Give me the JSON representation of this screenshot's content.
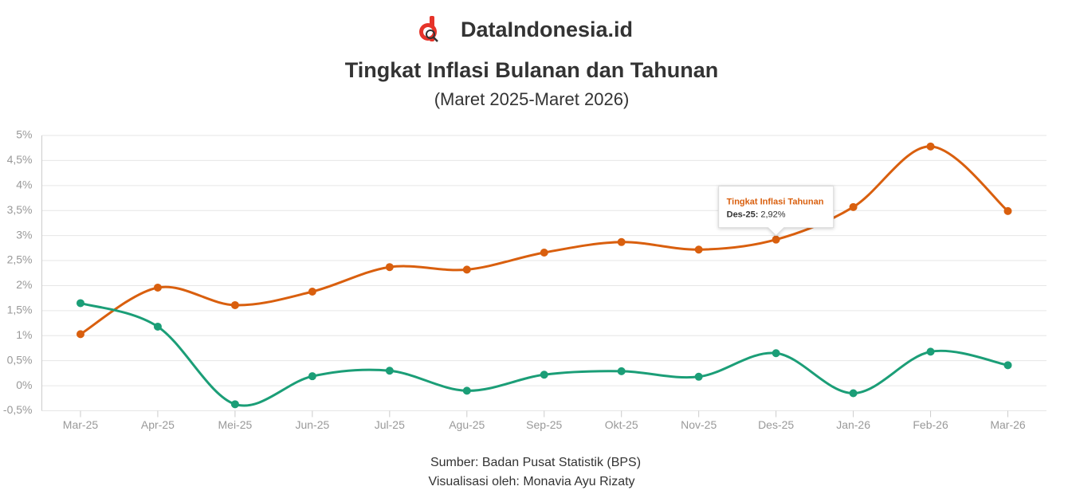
{
  "brand": "DataIndonesia.id",
  "chart_data": {
    "type": "line",
    "title": "Tingkat Inflasi Bulanan dan Tahunan",
    "subtitle": "(Maret 2025-Maret 2026)",
    "categories": [
      "Mar-25",
      "Apr-25",
      "Mei-25",
      "Jun-25",
      "Jul-25",
      "Agu-25",
      "Sep-25",
      "Okt-25",
      "Nov-25",
      "Des-25",
      "Jan-26",
      "Feb-26",
      "Mar-26"
    ],
    "series": [
      {
        "color": "#d95f0e",
        "values": [
          1.03,
          1.96,
          1.61,
          1.88,
          2.37,
          2.32,
          2.66,
          2.87,
          2.72,
          2.92,
          3.57,
          4.78,
          3.49
        ]
      },
      {
        "color": "#1b9e77",
        "values": [
          1.65,
          1.18,
          -0.37,
          0.19,
          0.3,
          -0.1,
          0.22,
          0.29,
          0.18,
          0.65,
          -0.15,
          0.68,
          0.41
        ]
      }
    ],
    "ylim": [
      -0.5,
      5
    ],
    "yticks": [
      {
        "value": -0.5,
        "label": "-0,5%"
      },
      {
        "value": 0,
        "label": "0%"
      },
      {
        "value": 0.5,
        "label": "0,5%"
      },
      {
        "value": 1,
        "label": "1%"
      },
      {
        "value": 1.5,
        "label": "1,5%"
      },
      {
        "value": 2,
        "label": "2%"
      },
      {
        "value": 2.5,
        "label": "2,5%"
      },
      {
        "value": 3,
        "label": "3%"
      },
      {
        "value": 3.5,
        "label": "3,5%"
      },
      {
        "value": 4,
        "label": "4%"
      },
      {
        "value": 4.5,
        "label": "4,5%"
      },
      {
        "value": 5,
        "label": "5%"
      }
    ],
    "grid": true,
    "tooltip": {
      "series": "Tingkat Inflasi Tahunan",
      "label": "Des-25:",
      "value_label": "2,92%"
    },
    "source": "Sumber: Badan Pusat Statistik (BPS)",
    "credit": "Visualisasi oleh: Monavia Ayu Rizaty"
  }
}
